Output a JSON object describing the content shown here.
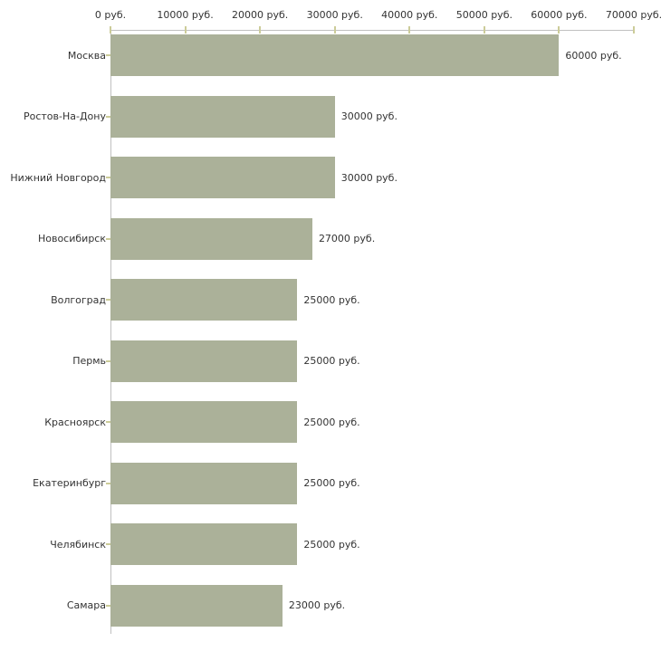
{
  "chart_data": {
    "type": "bar",
    "orientation": "horizontal",
    "title": "",
    "xlabel": "",
    "ylabel": "",
    "xlim": [
      0,
      70000
    ],
    "grid": false,
    "legend": null,
    "x_tick_values": [
      0,
      10000,
      20000,
      30000,
      40000,
      50000,
      60000,
      70000
    ],
    "x_tick_labels": [
      "0 руб.",
      "10000 руб.",
      "20000 руб.",
      "30000 руб.",
      "40000 руб.",
      "50000 руб.",
      "60000 руб.",
      "70000 руб."
    ],
    "categories": [
      "Москва",
      "Ростов-На-Дону",
      "Нижний Новгород",
      "Новосибирск",
      "Волгоград",
      "Пермь",
      "Красноярск",
      "Екатеринбург",
      "Челябинск",
      "Самара"
    ],
    "values": [
      60000,
      30000,
      30000,
      27000,
      25000,
      25000,
      25000,
      25000,
      25000,
      23000
    ],
    "value_labels": [
      "60000 руб.",
      "30000 руб.",
      "30000 руб.",
      "27000 руб.",
      "25000 руб.",
      "25000 руб.",
      "25000 руб.",
      "25000 руб.",
      "25000 руб.",
      "23000 руб."
    ],
    "colors": {
      "bar": "#abb199",
      "axis_line": "#c0c0c0",
      "tick": "#cccc99",
      "text": "#333333",
      "background": "#ffffff"
    }
  }
}
